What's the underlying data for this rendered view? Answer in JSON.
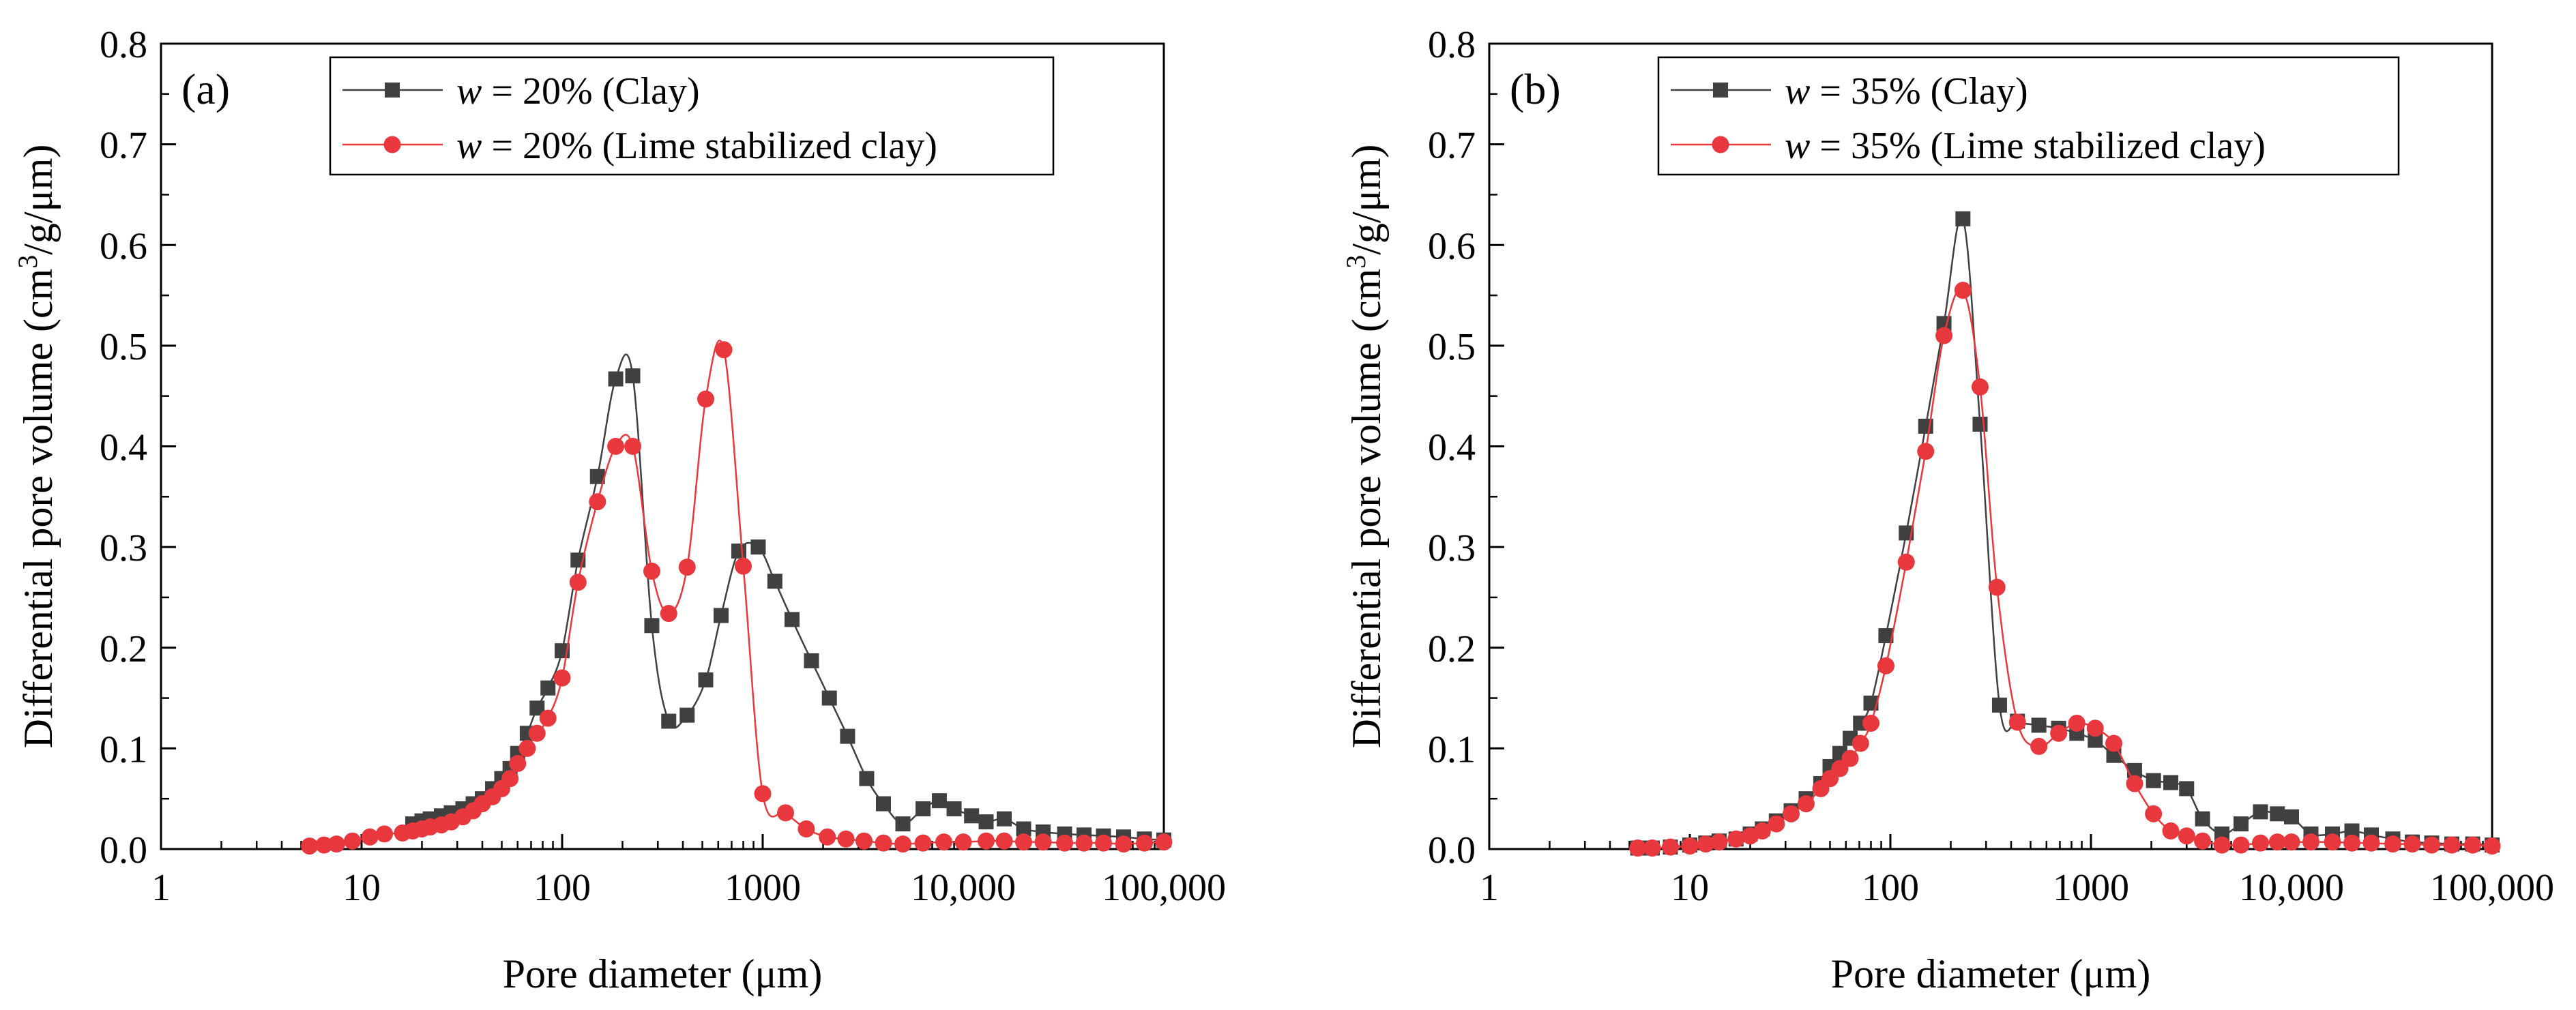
{
  "chart_data": [
    {
      "type": "line",
      "panel_label": "(a)",
      "xlabel": "Pore diameter (μm)",
      "ylabel_prefix": "Differential pore volume (cm",
      "ylabel_sup": "3",
      "ylabel_suffix": "/g/μm)",
      "x_scale": "log",
      "xlim": [
        1,
        100000
      ],
      "ylim": [
        0,
        0.8
      ],
      "x_ticks": [
        1,
        10,
        100,
        1000,
        10000,
        100000
      ],
      "x_tick_labels": [
        "1",
        "10",
        "100",
        "1000",
        "10,000",
        "100,000"
      ],
      "y_ticks": [
        0,
        0.1,
        0.2,
        0.3,
        0.4,
        0.5,
        0.6,
        0.7,
        0.8
      ],
      "y_tick_labels": [
        "0.0",
        "0.1",
        "0.2",
        "0.3",
        "0.4",
        "0.5",
        "0.6",
        "0.7",
        "0.8"
      ],
      "grid": false,
      "legend_position": "top",
      "series": [
        {
          "legend_var": "w",
          "legend_rest": " = 20%  (Clay)",
          "marker": "square",
          "color": "#404040",
          "x": [
            18,
            20,
            22,
            25,
            28,
            32,
            36,
            40,
            45,
            50,
            55,
            60,
            67,
            75,
            85,
            100,
            120,
            150,
            185,
            225,
            280,
            340,
            420,
            520,
            620,
            760,
            950,
            1150,
            1400,
            1750,
            2150,
            2650,
            3300,
            4000,
            5000,
            6300,
            7600,
            9000,
            11000,
            13000,
            16000,
            20000,
            25000,
            32000,
            40000,
            50000,
            63000,
            80000,
            100000
          ],
          "y": [
            0.025,
            0.028,
            0.03,
            0.033,
            0.036,
            0.04,
            0.045,
            0.05,
            0.06,
            0.07,
            0.08,
            0.095,
            0.115,
            0.14,
            0.16,
            0.197,
            0.287,
            0.37,
            0.467,
            0.47,
            0.222,
            0.127,
            0.133,
            0.168,
            0.232,
            0.296,
            0.3,
            0.266,
            0.228,
            0.187,
            0.15,
            0.112,
            0.07,
            0.045,
            0.025,
            0.04,
            0.048,
            0.04,
            0.033,
            0.027,
            0.03,
            0.02,
            0.017,
            0.015,
            0.014,
            0.013,
            0.012,
            0.01,
            0.009
          ]
        },
        {
          "legend_var": "w",
          "legend_rest": " = 20%  (Lime stabilized clay)",
          "marker": "circle",
          "color": "#e8383d",
          "x": [
            5.5,
            6.5,
            7.5,
            9,
            11,
            13,
            16,
            18,
            20,
            22,
            25,
            28,
            32,
            36,
            40,
            45,
            50,
            55,
            60,
            67,
            75,
            85,
            100,
            120,
            150,
            185,
            225,
            280,
            340,
            420,
            520,
            640,
            800,
            1000,
            1300,
            1650,
            2100,
            2600,
            3200,
            4000,
            5000,
            6300,
            8000,
            10000,
            13000,
            16000,
            20000,
            25000,
            32000,
            40000,
            50000,
            63000,
            80000,
            100000
          ],
          "y": [
            0.003,
            0.004,
            0.005,
            0.008,
            0.012,
            0.015,
            0.016,
            0.018,
            0.02,
            0.022,
            0.024,
            0.027,
            0.032,
            0.038,
            0.045,
            0.052,
            0.06,
            0.07,
            0.085,
            0.1,
            0.115,
            0.13,
            0.17,
            0.265,
            0.345,
            0.4,
            0.4,
            0.276,
            0.234,
            0.28,
            0.447,
            0.496,
            0.281,
            0.055,
            0.036,
            0.02,
            0.012,
            0.01,
            0.008,
            0.006,
            0.005,
            0.006,
            0.007,
            0.007,
            0.008,
            0.008,
            0.007,
            0.007,
            0.006,
            0.006,
            0.006,
            0.005,
            0.006,
            0.007
          ]
        }
      ]
    },
    {
      "type": "line",
      "panel_label": "(b)",
      "xlabel": "Pore diameter (μm)",
      "ylabel_prefix": "Differential pore volume (cm",
      "ylabel_sup": "3",
      "ylabel_suffix": "/g/μm)",
      "x_scale": "log",
      "xlim": [
        1,
        100000
      ],
      "ylim": [
        0,
        0.8
      ],
      "x_ticks": [
        1,
        10,
        100,
        1000,
        10000,
        100000
      ],
      "x_tick_labels": [
        "1",
        "10",
        "100",
        "1000",
        "10,000",
        "100,000"
      ],
      "y_ticks": [
        0,
        0.1,
        0.2,
        0.3,
        0.4,
        0.5,
        0.6,
        0.7,
        0.8
      ],
      "y_tick_labels": [
        "0.0",
        "0.1",
        "0.2",
        "0.3",
        "0.4",
        "0.5",
        "0.6",
        "0.7",
        "0.8"
      ],
      "grid": false,
      "legend_position": "top",
      "series": [
        {
          "legend_var": "w",
          "legend_rest": " = 35%  (Clay)",
          "marker": "square",
          "color": "#404040",
          "x": [
            5.5,
            6.5,
            8,
            10,
            12,
            14,
            17,
            20,
            23,
            27,
            32,
            38,
            45,
            50,
            56,
            63,
            71,
            80,
            95,
            120,
            150,
            185,
            230,
            280,
            350,
            430,
            550,
            690,
            850,
            1050,
            1300,
            1650,
            2050,
            2500,
            3000,
            3600,
            4500,
            5600,
            7000,
            8500,
            10000,
            12500,
            16000,
            20000,
            25000,
            32000,
            40000,
            50000,
            63000,
            80000,
            100000
          ],
          "y": [
            0.001,
            0.001,
            0.002,
            0.004,
            0.006,
            0.008,
            0.01,
            0.015,
            0.02,
            0.028,
            0.038,
            0.05,
            0.065,
            0.082,
            0.095,
            0.11,
            0.125,
            0.145,
            0.212,
            0.314,
            0.42,
            0.522,
            0.626,
            0.422,
            0.143,
            0.127,
            0.123,
            0.12,
            0.115,
            0.108,
            0.093,
            0.078,
            0.068,
            0.066,
            0.06,
            0.03,
            0.015,
            0.025,
            0.037,
            0.035,
            0.032,
            0.015,
            0.015,
            0.018,
            0.014,
            0.01,
            0.007,
            0.006,
            0.005,
            0.005,
            0.004
          ]
        },
        {
          "legend_var": "w",
          "legend_rest": " = 35%  (Lime stabilized clay)",
          "marker": "circle",
          "color": "#e8383d",
          "x": [
            5.5,
            6.5,
            8,
            10,
            12,
            14,
            17,
            20,
            23,
            27,
            32,
            38,
            45,
            50,
            56,
            63,
            71,
            80,
            95,
            120,
            150,
            185,
            230,
            280,
            340,
            430,
            550,
            690,
            850,
            1050,
            1300,
            1650,
            2050,
            2500,
            3000,
            3600,
            4500,
            5600,
            7000,
            8500,
            10000,
            12500,
            16000,
            20000,
            25000,
            32000,
            40000,
            50000,
            63000,
            80000,
            100000
          ],
          "y": [
            0.001,
            0.001,
            0.002,
            0.003,
            0.005,
            0.007,
            0.01,
            0.013,
            0.018,
            0.025,
            0.035,
            0.045,
            0.06,
            0.07,
            0.08,
            0.09,
            0.105,
            0.125,
            0.182,
            0.285,
            0.395,
            0.51,
            0.555,
            0.459,
            0.26,
            0.126,
            0.102,
            0.115,
            0.125,
            0.12,
            0.105,
            0.065,
            0.035,
            0.018,
            0.013,
            0.008,
            0.004,
            0.004,
            0.006,
            0.007,
            0.007,
            0.007,
            0.007,
            0.006,
            0.006,
            0.005,
            0.005,
            0.004,
            0.004,
            0.004,
            0.003
          ]
        }
      ]
    }
  ]
}
